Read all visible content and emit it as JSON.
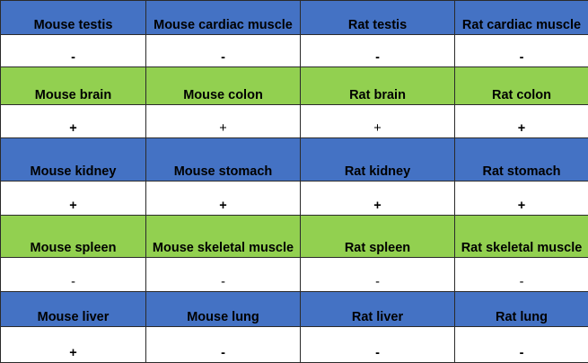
{
  "colors": {
    "header_blue": "#4472c4",
    "header_green": "#92d050",
    "value_row": "#ffffff",
    "border": "#2b2b2b"
  },
  "rows": [
    {
      "header_color": "blue",
      "tissues": [
        "Mouse testis",
        "Mouse cardiac muscle",
        "Rat testis",
        "Rat cardiac muscle"
      ],
      "results": [
        "-",
        "-",
        "-",
        "-"
      ],
      "result_bold": [
        true,
        true,
        true,
        true
      ]
    },
    {
      "header_color": "green",
      "tissues": [
        "Mouse brain",
        "Mouse colon",
        "Rat brain",
        "Rat colon"
      ],
      "results": [
        "+",
        "+",
        "+",
        "+"
      ],
      "result_bold": [
        true,
        false,
        false,
        true
      ]
    },
    {
      "header_color": "blue",
      "tissues": [
        "Mouse kidney",
        "Mouse stomach",
        "Rat kidney",
        "Rat stomach"
      ],
      "results": [
        "+",
        "+",
        "+",
        "+"
      ],
      "result_bold": [
        true,
        true,
        true,
        true
      ]
    },
    {
      "header_color": "green",
      "tissues": [
        "Mouse spleen",
        "Mouse skeletal muscle",
        "Rat spleen",
        "Rat skeletal muscle"
      ],
      "results": [
        "-",
        "-",
        "-",
        "-"
      ],
      "result_bold": [
        false,
        false,
        false,
        false
      ]
    },
    {
      "header_color": "blue",
      "tissues": [
        "Mouse liver",
        "Mouse lung",
        "Rat liver",
        "Rat lung"
      ],
      "results": [
        "+",
        "-",
        "-",
        "-"
      ],
      "result_bold": [
        true,
        true,
        true,
        true
      ]
    }
  ]
}
